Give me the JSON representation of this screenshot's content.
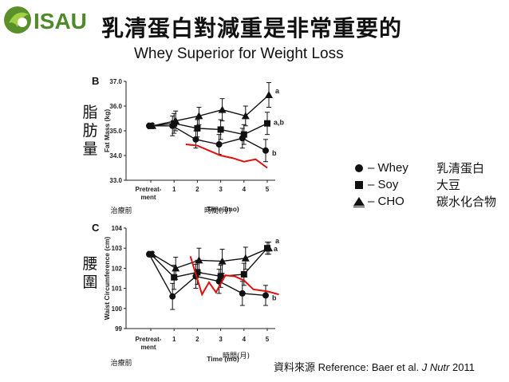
{
  "title": "乳清蛋白對減重是非常重要的",
  "subtitle": "Whey Superior for Weight Loss",
  "logo_text": "ISAU",
  "side_labels": {
    "fat": [
      "脂",
      "肪",
      "量"
    ],
    "waist": [
      "腰",
      "圍"
    ]
  },
  "legend": [
    {
      "marker": "circle",
      "label": "– Whey",
      "cn": "乳清蛋白"
    },
    {
      "marker": "square",
      "label": "–  Soy",
      "cn": "大豆"
    },
    {
      "marker": "triangle",
      "label": "–  CHO",
      "cn": "碳水化合物"
    }
  ],
  "reference": {
    "prefix": "資料來源 Reference: Baer et al.",
    "journal": "J Nutr",
    "year": "2011"
  },
  "chart_data": [
    {
      "type": "line",
      "panel": "B",
      "ylabel": "Fat Mass (kg)",
      "xlabel": "Time (mo)",
      "x_categories": [
        "Pretreat-\nment",
        "1",
        "2",
        "3",
        "4",
        "5"
      ],
      "x_extra_labels": [
        "治療前",
        "時間(月)"
      ],
      "ylim": [
        33.0,
        37.0
      ],
      "yticks": [
        "33.0",
        "34.0",
        "35.0",
        "36.0",
        "37.0"
      ],
      "series": [
        {
          "name": "Whey",
          "marker": "circle",
          "values": [
            35.2,
            35.2,
            34.65,
            34.45,
            34.7,
            34.2
          ],
          "errors": [
            0.08,
            0.4,
            0.35,
            0.4,
            0.4,
            0.45
          ],
          "sig_label": "b"
        },
        {
          "name": "Soy",
          "marker": "square",
          "values": [
            35.2,
            35.3,
            35.1,
            35.05,
            34.85,
            35.3
          ],
          "errors": [
            0.08,
            0.4,
            0.35,
            0.4,
            0.4,
            0.45
          ],
          "sig_label": "a,b"
        },
        {
          "name": "CHO",
          "marker": "triangle",
          "values": [
            35.2,
            35.4,
            35.6,
            35.85,
            35.6,
            36.45
          ],
          "errors": [
            0.08,
            0.4,
            0.35,
            0.45,
            0.4,
            0.5
          ],
          "sig_label": "a"
        }
      ],
      "annotation_line": {
        "color": "#e01010",
        "x": [
          1.5,
          2,
          2.5,
          3,
          3.5,
          4,
          4.5,
          5
        ],
        "y": [
          34.45,
          34.4,
          34.2,
          34.0,
          33.9,
          33.75,
          33.85,
          33.5
        ]
      }
    },
    {
      "type": "line",
      "panel": "C",
      "ylabel": "Waist Circumference (cm)",
      "xlabel": "Time (mo)",
      "x_categories": [
        "Pretreat-\nment",
        "1",
        "2",
        "3",
        "4",
        "5"
      ],
      "x_extra_labels": [
        "治療前",
        "時間(月)"
      ],
      "ylim": [
        99,
        104
      ],
      "yticks": [
        "99",
        "100",
        "101",
        "102",
        "103",
        "104"
      ],
      "series": [
        {
          "name": "Whey",
          "marker": "circle",
          "values": [
            102.7,
            100.6,
            101.6,
            101.35,
            100.75,
            100.65
          ],
          "errors": [
            0.1,
            0.65,
            0.6,
            0.6,
            0.6,
            0.5
          ],
          "sig_label": "b"
        },
        {
          "name": "Soy",
          "marker": "square",
          "values": [
            102.7,
            101.55,
            101.8,
            101.6,
            101.7,
            103.0
          ],
          "errors": [
            0.1,
            0.6,
            0.6,
            0.55,
            0.55,
            0.3
          ],
          "sig_label": "a"
        },
        {
          "name": "CHO",
          "marker": "triangle",
          "values": [
            102.7,
            102.0,
            102.4,
            102.35,
            102.5,
            103.0
          ],
          "errors": [
            0.1,
            0.55,
            0.6,
            0.6,
            0.55,
            0.3
          ],
          "sig_label": "a"
        }
      ],
      "annotation_line": {
        "color": "#e01010",
        "x": [
          1.7,
          2.2,
          2.5,
          2.8,
          3.2,
          3.6,
          4.0,
          4.4,
          5.0,
          5.5
        ],
        "y": [
          102.6,
          100.7,
          101.3,
          100.8,
          101.65,
          101.6,
          101.4,
          100.95,
          100.85,
          100.7
        ]
      }
    }
  ]
}
